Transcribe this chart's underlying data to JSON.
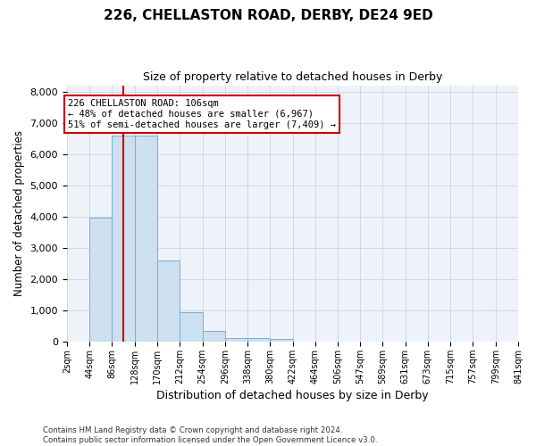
{
  "title_line1": "226, CHELLASTON ROAD, DERBY, DE24 9ED",
  "title_line2": "Size of property relative to detached houses in Derby",
  "xlabel": "Distribution of detached houses by size in Derby",
  "ylabel": "Number of detached properties",
  "footnote": "Contains HM Land Registry data © Crown copyright and database right 2024.\nContains public sector information licensed under the Open Government Licence v3.0.",
  "annotation_title": "226 CHELLASTON ROAD: 106sqm",
  "annotation_line1": "← 48% of detached houses are smaller (6,967)",
  "annotation_line2": "51% of semi-detached houses are larger (7,409) →",
  "property_line_x": 106,
  "bar_color": "#cce0f0",
  "bar_edge_color": "#7aaed6",
  "property_line_color": "#cc0000",
  "annotation_box_color": "#cc0000",
  "grid_color": "#d0d8e8",
  "bin_edges": [
    2,
    44,
    86,
    128,
    170,
    212,
    254,
    296,
    338,
    380,
    422,
    464,
    506,
    547,
    589,
    631,
    673,
    715,
    757,
    799,
    841
  ],
  "bar_heights": [
    4,
    3950,
    6600,
    6600,
    2600,
    950,
    350,
    120,
    110,
    90,
    0,
    0,
    0,
    0,
    0,
    0,
    0,
    0,
    0,
    0
  ],
  "ylim": [
    0,
    8200
  ],
  "yticks": [
    0,
    1000,
    2000,
    3000,
    4000,
    5000,
    6000,
    7000,
    8000
  ],
  "background_color": "#ffffff",
  "plot_background_color": "#eef2f9"
}
